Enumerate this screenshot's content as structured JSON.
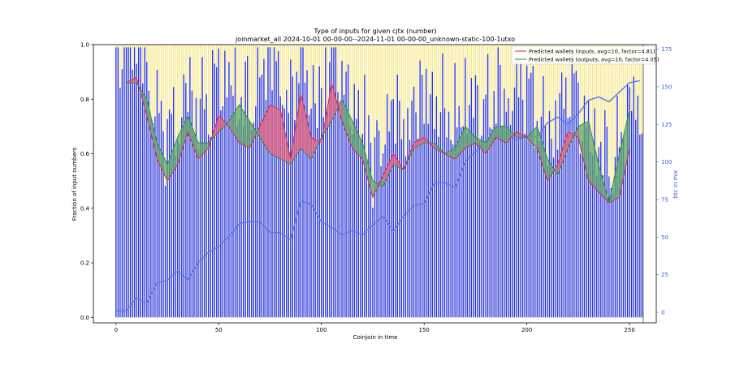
{
  "chart_data": {
    "type": "bar",
    "title": "Type of inputs for given cjtx (number)",
    "subtitle": "joinmarket_all 2024-10-01 00-00-00--2024-11-01 00-00-00_unknown-static-100-1utxo",
    "xlabel": "Coinjoin in time",
    "ylabel": "Fraction of input numbers",
    "y2label": "btc in mix",
    "xlim": [
      -11,
      263
    ],
    "ylim": [
      -0.02,
      1.0
    ],
    "y2lim": [
      -7,
      178
    ],
    "x_ticks": [
      0,
      50,
      100,
      150,
      200,
      250
    ],
    "y_ticks": [
      0.0,
      0.2,
      0.4,
      0.6,
      0.8,
      1.0
    ],
    "y2_ticks": [
      0,
      25,
      50,
      75,
      100,
      125,
      150,
      175
    ],
    "grid": false,
    "legend_position": "top-right",
    "n_coinjoins": 257,
    "colors": {
      "blue_bars": "#2b35d6",
      "yellow_bars": "#f6e88c",
      "inputs_line": "#d62a4a",
      "inputs_fill": "#e8667f",
      "outputs_line": "#2e8b57",
      "outputs_fill": "#62a86a",
      "btc_line": "#5a78e6"
    },
    "series": [
      {
        "name": "Predicted wallets (inputs, avg=10, factor=4.81)",
        "role": "inputs",
        "x": [
          5,
          10,
          15,
          20,
          25,
          30,
          35,
          40,
          45,
          50,
          55,
          60,
          65,
          70,
          75,
          80,
          85,
          90,
          95,
          100,
          105,
          110,
          115,
          120,
          125,
          130,
          135,
          140,
          145,
          150,
          155,
          160,
          165,
          170,
          175,
          180,
          185,
          190,
          195,
          200,
          205,
          210,
          215,
          220,
          225,
          230,
          235,
          240,
          245,
          250
        ],
        "values": [
          0.86,
          0.88,
          0.74,
          0.58,
          0.5,
          0.56,
          0.68,
          0.58,
          0.62,
          0.74,
          0.7,
          0.64,
          0.62,
          0.7,
          0.78,
          0.76,
          0.58,
          0.82,
          0.66,
          0.64,
          0.86,
          0.72,
          0.62,
          0.58,
          0.44,
          0.52,
          0.6,
          0.54,
          0.64,
          0.66,
          0.62,
          0.6,
          0.58,
          0.62,
          0.64,
          0.6,
          0.66,
          0.64,
          0.68,
          0.66,
          0.62,
          0.5,
          0.56,
          0.68,
          0.66,
          0.5,
          0.46,
          0.42,
          0.44,
          0.62
        ]
      },
      {
        "name": "Predicted wallets (outputs, avg=10, factor=4.05)",
        "role": "outputs",
        "x": [
          5,
          10,
          15,
          20,
          25,
          30,
          35,
          40,
          45,
          50,
          55,
          60,
          65,
          70,
          75,
          80,
          85,
          90,
          95,
          100,
          105,
          110,
          115,
          120,
          125,
          130,
          135,
          140,
          145,
          150,
          155,
          160,
          165,
          170,
          175,
          180,
          185,
          190,
          195,
          200,
          205,
          210,
          215,
          220,
          225,
          230,
          235,
          240,
          245,
          250
        ],
        "values": [
          0.86,
          0.86,
          0.8,
          0.64,
          0.56,
          0.66,
          0.74,
          0.64,
          0.64,
          0.68,
          0.72,
          0.78,
          0.72,
          0.66,
          0.6,
          0.58,
          0.56,
          0.62,
          0.58,
          0.66,
          0.72,
          0.8,
          0.72,
          0.64,
          0.5,
          0.48,
          0.56,
          0.54,
          0.62,
          0.64,
          0.64,
          0.6,
          0.62,
          0.7,
          0.66,
          0.64,
          0.7,
          0.7,
          0.66,
          0.66,
          0.7,
          0.58,
          0.52,
          0.62,
          0.7,
          0.72,
          0.56,
          0.42,
          0.6,
          0.76
        ]
      },
      {
        "name": "btc in mix",
        "role": "btc",
        "axis": "right",
        "x": [
          0,
          5,
          10,
          15,
          20,
          25,
          30,
          35,
          40,
          45,
          50,
          55,
          60,
          65,
          70,
          75,
          80,
          85,
          90,
          95,
          100,
          105,
          110,
          115,
          120,
          125,
          130,
          135,
          140,
          145,
          150,
          155,
          160,
          165,
          170,
          175,
          180,
          185,
          190,
          195,
          200,
          205,
          210,
          215,
          220,
          225,
          230,
          235,
          240,
          245,
          250,
          255
        ],
        "values": [
          1,
          2,
          8,
          8,
          18,
          22,
          28,
          20,
          35,
          38,
          45,
          50,
          58,
          62,
          58,
          55,
          52,
          48,
          75,
          70,
          62,
          55,
          52,
          55,
          50,
          60,
          62,
          55,
          64,
          70,
          74,
          84,
          88,
          82,
          100,
          108,
          112,
          118,
          118,
          115,
          118,
          115,
          128,
          128,
          126,
          132,
          140,
          145,
          138,
          148,
          152,
          154
        ]
      }
    ]
  }
}
